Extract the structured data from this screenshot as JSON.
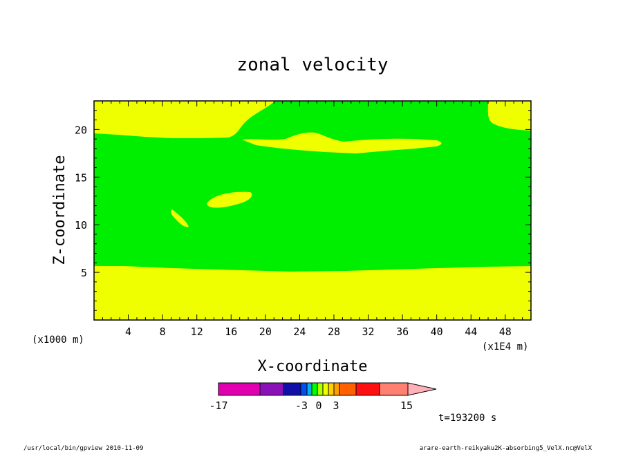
{
  "chart_data": {
    "type": "contour",
    "title": "zonal velocity",
    "xlabel": "X-coordinate",
    "ylabel": "Z-coordinate",
    "x_unit": "(x1E4 m)",
    "y_unit": "(x1000 m)",
    "xlim": [
      0,
      51
    ],
    "ylim": [
      0,
      23
    ],
    "x_ticks": [
      4,
      8,
      12,
      16,
      20,
      24,
      28,
      32,
      36,
      40,
      44,
      48
    ],
    "y_ticks": [
      5,
      10,
      15,
      20
    ],
    "colorbar": {
      "labels": [
        "-17",
        "-3",
        "0",
        "3",
        "15"
      ],
      "colors": [
        "#e000b0",
        "#8a10b8",
        "#1010a8",
        "#0050f0",
        "#00b0f0",
        "#00ff00",
        "#b0ff00",
        "#f0ff00",
        "#ffd000",
        "#ffa000",
        "#ff6000",
        "#ff1010",
        "#ff8070",
        "#ffb0b8"
      ]
    },
    "regions": [
      {
        "level": "0 to 3",
        "color": "#f0ff00",
        "where": "background: z < ~5.5 and z > ~19.5"
      },
      {
        "level": "-3 to 0",
        "color": "#00ee00",
        "where": "main band z ~5.5 to ~19.5, extending up to top near x 19-46"
      },
      {
        "level": "0 to 3",
        "color": "#f0ff00",
        "where": "lens near x 19-40, z ~17.5-19.5"
      },
      {
        "level": "0 to 3",
        "color": "#f0ff00",
        "where": "island near x 13-18, z ~12-13"
      },
      {
        "level": "0 to 3",
        "color": "#f0ff00",
        "where": "island near x 9-11, z ~10-11"
      }
    ],
    "time_label": "t=193200 s"
  },
  "footer": {
    "left": "/usr/local/bin/gpview  2010-11-09",
    "right": "arare-earth-reikyaku2K-absorbing5_VelX.nc@VelX"
  }
}
